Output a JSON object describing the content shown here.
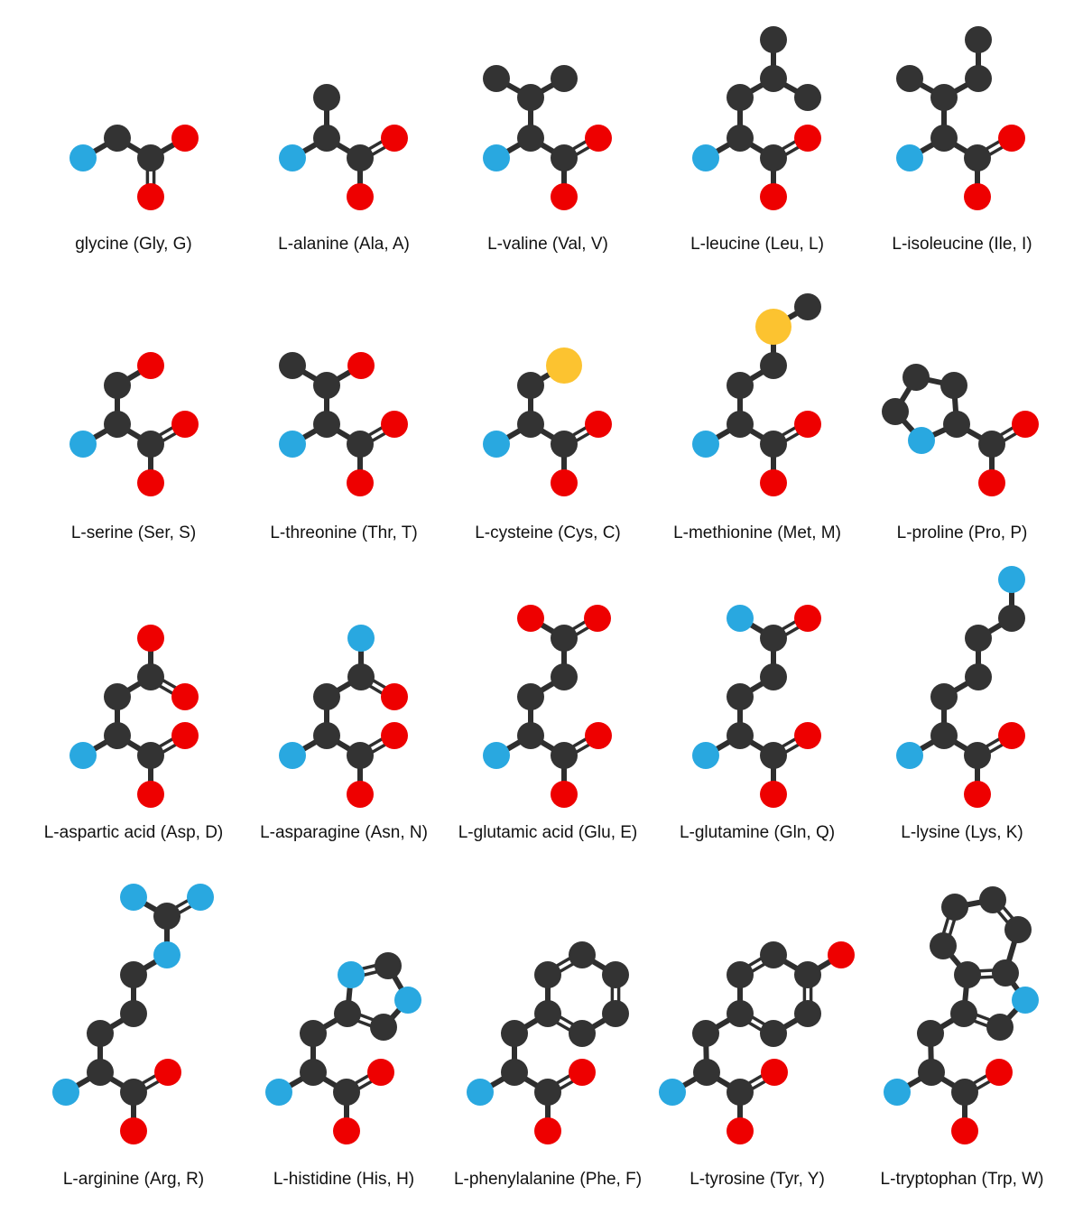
{
  "colors": {
    "carbon": "#333333",
    "nitrogen": "#29a8e0",
    "oxygen": "#ee0000",
    "sulfur": "#fcc330",
    "bond": "#2e2e2e"
  },
  "molecules": [
    {
      "label": "glycine (Gly, G)"
    },
    {
      "label": "L-alanine (Ala, A)"
    },
    {
      "label": "L-valine (Val, V)"
    },
    {
      "label": "L-leucine (Leu, L)"
    },
    {
      "label": "L-isoleucine (Ile, I)"
    },
    {
      "label": "L-serine (Ser, S)"
    },
    {
      "label": "L-threonine (Thr, T)"
    },
    {
      "label": "L-cysteine (Cys, C)"
    },
    {
      "label": "L-methionine (Met, M)"
    },
    {
      "label": "L-proline (Pro, P)"
    },
    {
      "label": "L-aspartic acid (Asp, D)"
    },
    {
      "label": "L-asparagine (Asn, N)"
    },
    {
      "label": "L-glutamic acid (Glu, E)"
    },
    {
      "label": "L-glutamine (Gln, Q)"
    },
    {
      "label": "L-lysine (Lys, K)"
    },
    {
      "label": "L-arginine (Arg, R)"
    },
    {
      "label": "L-histidine (His, H)"
    },
    {
      "label": "L-phenylalanine (Phe, F)"
    },
    {
      "label": "L-tyrosine (Tyr, Y)"
    },
    {
      "label": "L-tryptophan (Trp, W)"
    }
  ]
}
